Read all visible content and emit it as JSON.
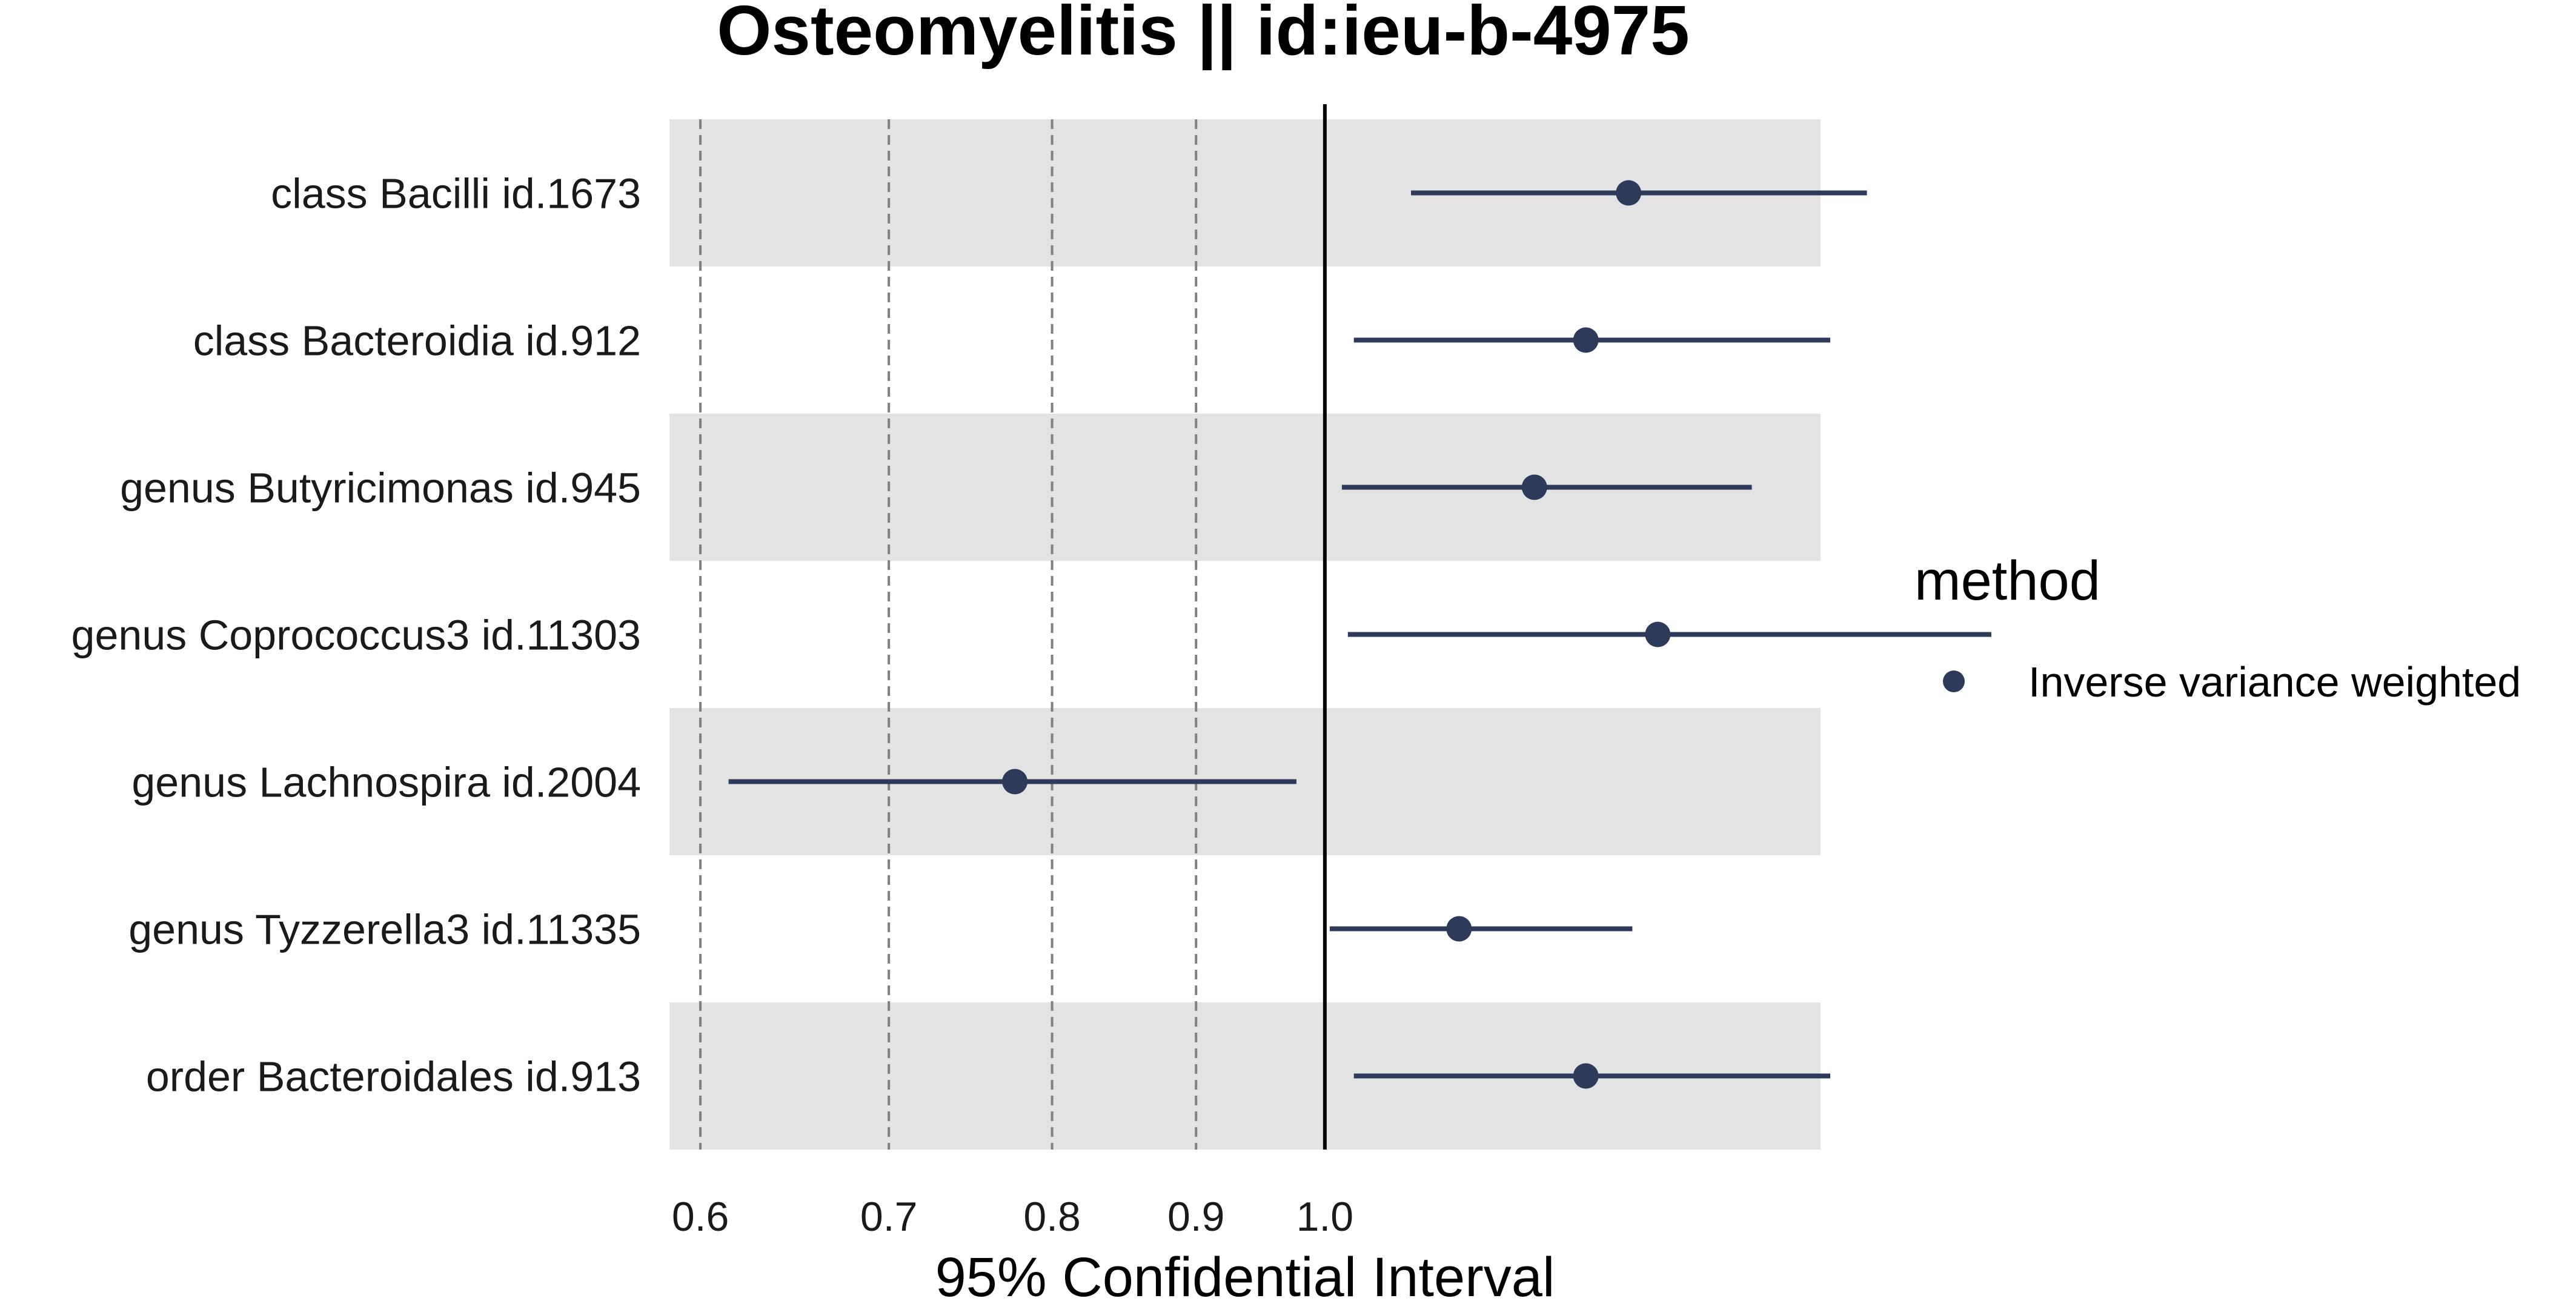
{
  "chart_data": {
    "type": "scatter",
    "subtype": "forest-plot",
    "title": "Osteomyelitis || id:ieu-b-4975",
    "xlabel": "95% Confidential Interval",
    "ylabel": "",
    "x_scale": "log",
    "xlim": [
      0.585,
      1.5
    ],
    "x_ticks": [
      {
        "value": 0.6,
        "label": "0.6"
      },
      {
        "value": 0.7,
        "label": "0.7"
      },
      {
        "value": 0.8,
        "label": "0.8"
      },
      {
        "value": 0.9,
        "label": "0.9"
      },
      {
        "value": 1.0,
        "label": "1.0"
      }
    ],
    "reference_line": 1.0,
    "legend": {
      "title": "method",
      "position": "right",
      "entries": [
        "Inverse variance weighted"
      ]
    },
    "colors": {
      "point": "#2e3a59",
      "band": "#e3e3e3",
      "reference": "#000000",
      "grid": "#808080"
    },
    "series": [
      {
        "name": "Inverse variance weighted",
        "points": [
          {
            "label": "class Bacilli id.1673",
            "or": 1.282,
            "lower": 1.073,
            "upper": 1.558
          },
          {
            "label": "class Bacteroidia id.912",
            "or": 1.238,
            "lower": 1.024,
            "upper": 1.512
          },
          {
            "label": "genus Butyricimonas id.945",
            "or": 1.187,
            "lower": 1.014,
            "upper": 1.418
          },
          {
            "label": "genus Coprococcus3 id.11303",
            "or": 1.313,
            "lower": 1.019,
            "upper": 1.725
          },
          {
            "label": "genus Lachnospira id.2004",
            "or": 0.776,
            "lower": 0.614,
            "upper": 0.977
          },
          {
            "label": "genus Tyzzerella3 id.11335",
            "or": 1.116,
            "lower": 1.004,
            "upper": 1.286
          },
          {
            "label": "order Bacteroidales id.913",
            "or": 1.238,
            "lower": 1.024,
            "upper": 1.512
          }
        ]
      }
    ]
  }
}
